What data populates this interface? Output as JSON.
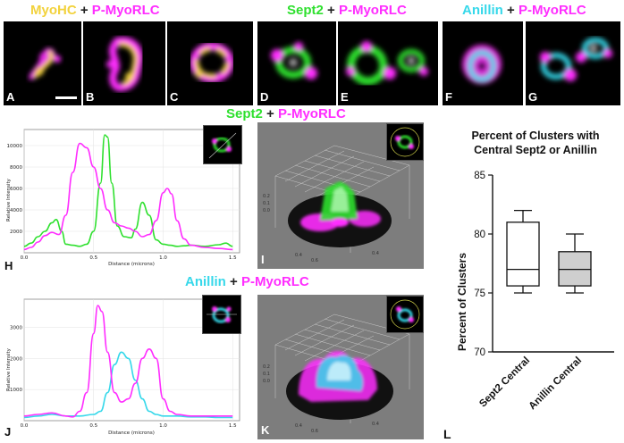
{
  "colors": {
    "myohc": "#f2d23c",
    "p_myorlc": "#ff2dff",
    "sept2": "#2fe02f",
    "anillin": "#36d8ea",
    "box_fill": "#cfcfcf",
    "surface_bg": "#7d7d7d"
  },
  "headers": {
    "myohc_pair": {
      "first": "MyoHC",
      "plus": "+",
      "second": "P-MyoRLC"
    },
    "sept2_pair": {
      "first": "Sept2",
      "plus": "+",
      "second": "P-MyoRLC"
    },
    "anillin_pair": {
      "first": "Anillin",
      "plus": "+",
      "second": "P-MyoRLC"
    },
    "sept2_plot": {
      "first": "Sept2",
      "plus": "+",
      "second": "P-MyoRLC"
    },
    "anillin_plot": {
      "first": "Anillin",
      "plus": "+",
      "second": "P-MyoRLC"
    }
  },
  "panel_labels": {
    "a": "A",
    "b": "B",
    "c": "C",
    "d": "D",
    "e": "E",
    "f": "F",
    "g": "G",
    "h": "H",
    "i": "I",
    "j": "J",
    "k": "K",
    "l": "L"
  },
  "line_plot_h": {
    "ylabel": "Relative Intensity",
    "xlabel": "Distance (microns)",
    "yticks": [
      "2000",
      "4000",
      "6000",
      "8000",
      "10000"
    ],
    "xticks": [
      "0.0",
      "0.5",
      "1.0",
      "1.5"
    ]
  },
  "line_plot_j": {
    "ylabel": "Relative Intensity",
    "xlabel": "Distance (microns)",
    "yticks": [
      "1000",
      "2000",
      "3000"
    ],
    "xticks": [
      "0.0",
      "0.5",
      "1.0",
      "1.5"
    ]
  },
  "chart_data": [
    {
      "type": "line",
      "panel": "H",
      "xlabel": "Distance (microns)",
      "ylabel": "Relative Intensity",
      "xlim": [
        0,
        1.55
      ],
      "ylim": [
        0,
        11500
      ],
      "series": [
        {
          "name": "Sept2",
          "color": "#2fe02f",
          "x": [
            0,
            0.05,
            0.1,
            0.15,
            0.2,
            0.23,
            0.27,
            0.3,
            0.35,
            0.4,
            0.45,
            0.5,
            0.55,
            0.58,
            0.6,
            0.63,
            0.67,
            0.72,
            0.77,
            0.8,
            0.85,
            0.9,
            0.95,
            1.0,
            1.05,
            1.1,
            1.15,
            1.2,
            1.3,
            1.4,
            1.45,
            1.5
          ],
          "y": [
            600,
            900,
            1500,
            2000,
            2800,
            3100,
            2000,
            800,
            700,
            600,
            800,
            2000,
            6500,
            11000,
            10800,
            6500,
            2500,
            1500,
            1400,
            2200,
            4700,
            3500,
            1200,
            800,
            700,
            600,
            650,
            700,
            600,
            750,
            900,
            600
          ]
        },
        {
          "name": "P-MyoRLC",
          "color": "#ff2dff",
          "x": [
            0,
            0.05,
            0.1,
            0.15,
            0.2,
            0.25,
            0.3,
            0.35,
            0.4,
            0.45,
            0.5,
            0.55,
            0.6,
            0.65,
            0.7,
            0.75,
            0.8,
            0.85,
            0.9,
            0.95,
            1.0,
            1.03,
            1.06,
            1.1,
            1.15,
            1.2,
            1.3,
            1.4,
            1.5
          ],
          "y": [
            300,
            500,
            1000,
            1600,
            1900,
            1700,
            3500,
            7500,
            10200,
            9800,
            8000,
            6000,
            4000,
            2800,
            2500,
            2300,
            2000,
            1500,
            1700,
            3000,
            5600,
            6000,
            5500,
            3000,
            1300,
            700,
            500,
            400,
            300
          ]
        }
      ]
    },
    {
      "type": "line",
      "panel": "J",
      "xlabel": "Distance (microns)",
      "ylabel": "Relative Intensity",
      "xlim": [
        0,
        1.55
      ],
      "ylim": [
        0,
        3900
      ],
      "series": [
        {
          "name": "Anillin",
          "color": "#36d8ea",
          "x": [
            0,
            0.1,
            0.2,
            0.3,
            0.4,
            0.5,
            0.55,
            0.6,
            0.65,
            0.7,
            0.75,
            0.8,
            0.85,
            0.9,
            0.95,
            1.0,
            1.1,
            1.2,
            1.3,
            1.4,
            1.5
          ],
          "y": [
            100,
            150,
            200,
            150,
            150,
            200,
            300,
            900,
            1800,
            2200,
            2000,
            1300,
            700,
            300,
            200,
            150,
            150,
            120,
            120,
            100,
            100
          ]
        },
        {
          "name": "P-MyoRLC",
          "color": "#ff2dff",
          "x": [
            0,
            0.1,
            0.2,
            0.3,
            0.35,
            0.4,
            0.45,
            0.5,
            0.53,
            0.56,
            0.6,
            0.65,
            0.7,
            0.75,
            0.8,
            0.85,
            0.9,
            0.95,
            1.0,
            1.05,
            1.1,
            1.2,
            1.3,
            1.4,
            1.5
          ],
          "y": [
            150,
            200,
            250,
            150,
            120,
            300,
            900,
            2800,
            3700,
            3500,
            2200,
            900,
            600,
            700,
            1200,
            2000,
            2300,
            2000,
            700,
            300,
            200,
            150,
            150,
            150,
            150
          ]
        }
      ]
    },
    {
      "type": "bar",
      "panel": "L",
      "title": "Percent of Clusters with Central Sept2 or Anillin",
      "ylabel": "Percent of Clusters",
      "categories": [
        "Sept2 Central",
        "Anillin Central"
      ],
      "ylim": [
        70,
        85
      ],
      "yticks": [
        70,
        75,
        80,
        85
      ],
      "boxes": [
        {
          "category": "Sept2 Central",
          "min": 75,
          "q1": 75.6,
          "median": 77,
          "q3": 81,
          "max": 82
        },
        {
          "category": "Anillin Central",
          "min": 75,
          "q1": 75.6,
          "median": 77,
          "q3": 78.5,
          "max": 80
        }
      ]
    }
  ]
}
